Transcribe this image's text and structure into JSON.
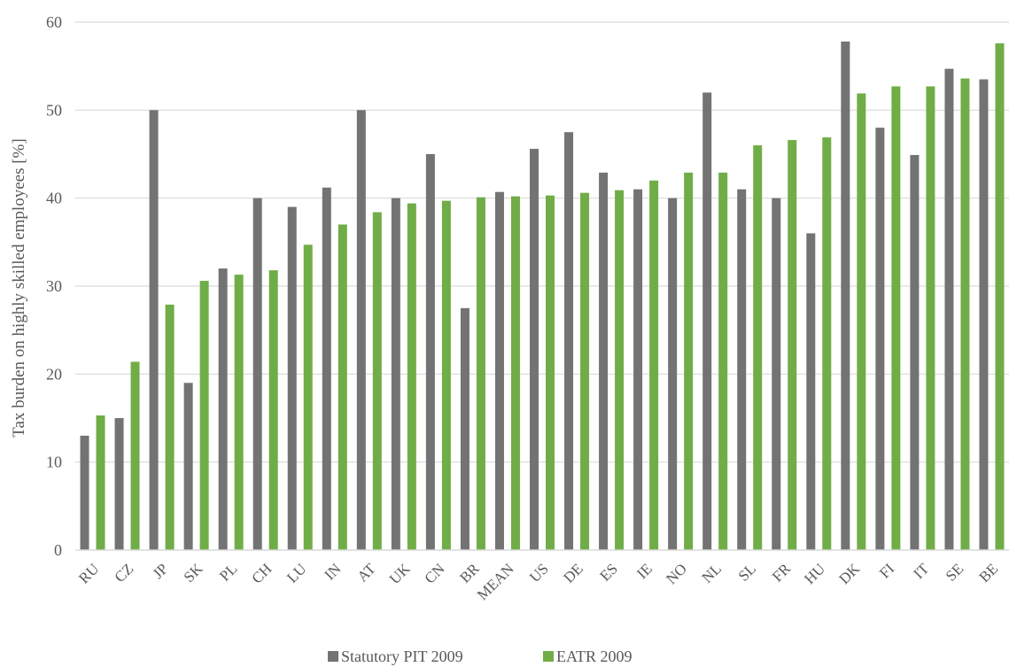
{
  "chart_data": {
    "type": "bar",
    "title": "",
    "xlabel": "",
    "ylabel": "Tax burden on highly skilled employees [%]",
    "ylim": [
      0,
      60
    ],
    "yticks": [
      0,
      10,
      20,
      30,
      40,
      50,
      60
    ],
    "grid": true,
    "legend_position": "bottom",
    "categories": [
      "RU",
      "CZ",
      "JP",
      "SK",
      "PL",
      "CH",
      "LU",
      "IN",
      "AT",
      "UK",
      "CN",
      "BR",
      "MEAN",
      "US",
      "DE",
      "ES",
      "IE",
      "NO",
      "NL",
      "SL",
      "FR",
      "HU",
      "DK",
      "FI",
      "IT",
      "SE",
      "BE"
    ],
    "series": [
      {
        "name": "Statutory PIT 2009",
        "color": "#737373",
        "values": [
          13,
          15,
          50,
          19,
          32,
          40,
          39,
          41.2,
          50,
          40,
          45,
          27.5,
          40.7,
          45.6,
          47.5,
          42.9,
          41,
          40,
          52,
          41,
          40,
          36,
          57.8,
          48,
          44.9,
          54.7,
          53.5
        ]
      },
      {
        "name": "EATR 2009",
        "color": "#70ad47",
        "values": [
          15.3,
          21.4,
          27.9,
          30.6,
          31.3,
          31.8,
          34.7,
          37,
          38.4,
          39.4,
          39.7,
          40.1,
          40.2,
          40.3,
          40.6,
          40.9,
          42,
          42.9,
          42.9,
          46,
          46.6,
          46.9,
          51.9,
          52.7,
          52.7,
          53.6,
          57.6
        ]
      }
    ]
  }
}
